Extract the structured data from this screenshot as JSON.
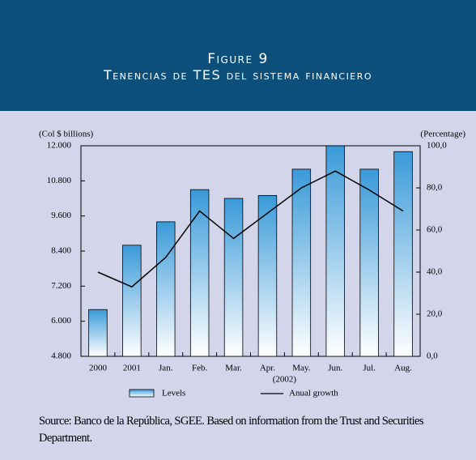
{
  "chart_data": {
    "type": "bar",
    "title": "Figure 9",
    "subtitle": "Tenencias de TES del sistema financiero",
    "ylabel": "(Col $ billions)",
    "y2label": "(Percentage)",
    "categories": [
      "2000",
      "2001",
      "Jan.",
      "Feb.",
      "Mar.",
      "Apr.",
      "May.",
      "Jun.",
      "Jul.",
      "Aug."
    ],
    "category_group_label": "(2002)",
    "series": [
      {
        "name": "Levels",
        "type": "bar",
        "color": "#3a9ad9",
        "values": [
          6400,
          8600,
          9400,
          10500,
          10200,
          10300,
          11200,
          12000,
          11200,
          11800
        ]
      },
      {
        "name": "Anual growth",
        "type": "line",
        "axis": "y2",
        "color": "#000000",
        "values": [
          40,
          33,
          47,
          69,
          56,
          68,
          80,
          88,
          79,
          69
        ]
      }
    ],
    "ylim": [
      4800,
      12000
    ],
    "yticks": [
      {
        "value": 4800,
        "label": "4.800"
      },
      {
        "value": 6000,
        "label": "6.000"
      },
      {
        "value": 7200,
        "label": "7.200"
      },
      {
        "value": 8400,
        "label": "8.400"
      },
      {
        "value": 9600,
        "label": "9.600"
      },
      {
        "value": 10800,
        "label": "10.800"
      },
      {
        "value": 12000,
        "label": "12.000"
      }
    ],
    "y2lim": [
      0,
      100
    ],
    "y2ticks": [
      {
        "value": 0,
        "label": "0,0"
      },
      {
        "value": 20,
        "label": "20,0"
      },
      {
        "value": 40,
        "label": "40,0"
      },
      {
        "value": 60,
        "label": "60,0"
      },
      {
        "value": 80,
        "label": "80,0"
      },
      {
        "value": 100,
        "label": "100,0"
      }
    ],
    "grid": false,
    "source": "Source: Banco de la República, SGEE.  Based on information from the Trust and Securities Department."
  }
}
